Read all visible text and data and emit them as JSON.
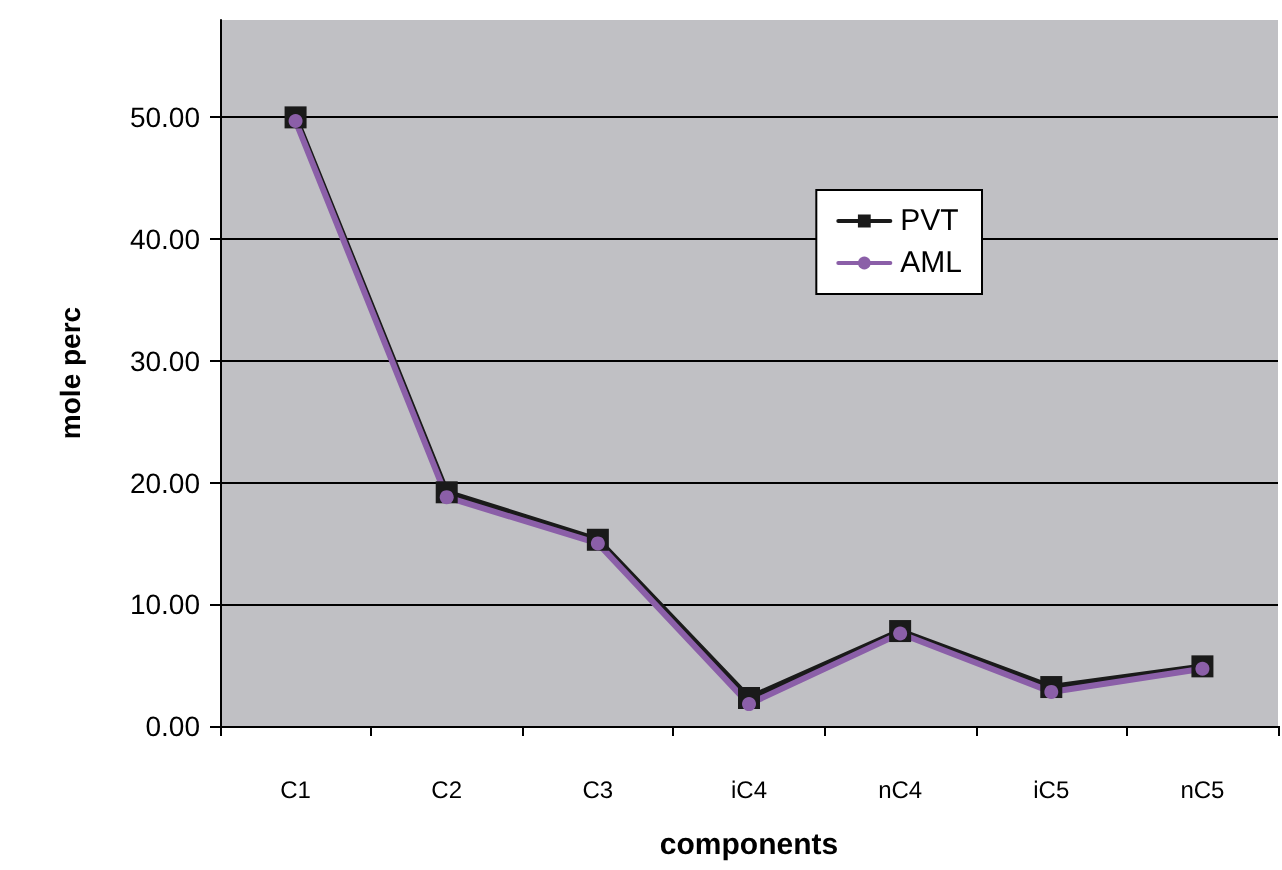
{
  "chart_data": {
    "type": "line",
    "xlabel": "components",
    "ylabel": "mole perc",
    "categories": [
      "C1",
      "C2",
      "C3",
      "iC4",
      "nC4",
      "iC5",
      "nC5"
    ],
    "series": [
      {
        "name": "PVT",
        "color": "#1a1a1a",
        "marker": "square",
        "values": [
          50.0,
          19.2,
          15.3,
          2.3,
          7.8,
          3.2,
          4.9
        ]
      },
      {
        "name": "AML",
        "color": "#8b5fa8",
        "marker": "circle",
        "values": [
          49.7,
          18.8,
          15.0,
          1.8,
          7.6,
          2.8,
          4.7
        ]
      }
    ],
    "ylim": [
      0,
      58
    ],
    "yticks": [
      {
        "value": 0,
        "label": "0.00"
      },
      {
        "value": 10,
        "label": "10.00"
      },
      {
        "value": 20,
        "label": "20.00"
      },
      {
        "value": 30,
        "label": "30.00"
      },
      {
        "value": 40,
        "label": "40.00"
      },
      {
        "value": 50,
        "label": "50.00"
      }
    ],
    "grid": "y",
    "legend": "top right",
    "line_style": "solid"
  }
}
